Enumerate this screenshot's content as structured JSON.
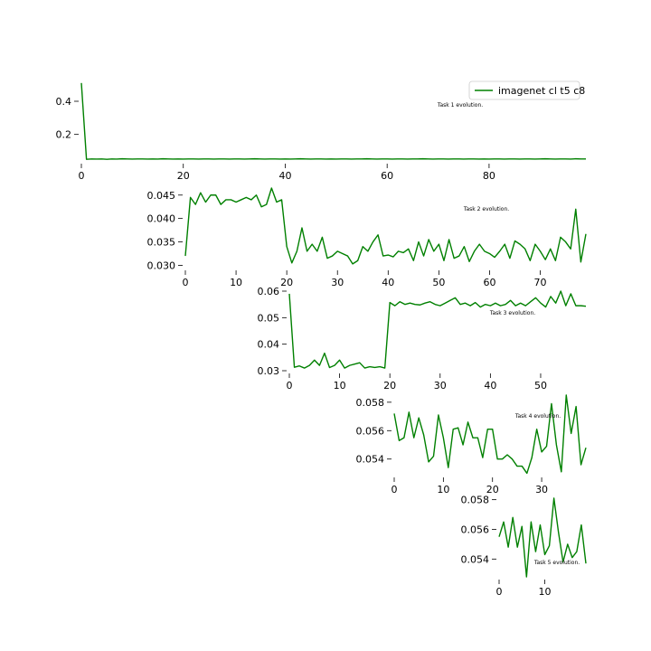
{
  "legend": {
    "label": "imagenet cl t5 c8",
    "color": "#008000"
  },
  "chart_data": [
    {
      "type": "line",
      "title": "Task 1 evolution.",
      "xlim": [
        0,
        99
      ],
      "ylim": [
        0.04,
        0.52
      ],
      "xticks": [
        0,
        20,
        40,
        60,
        80
      ],
      "yticks": [
        0.2,
        0.4
      ],
      "ytick_labels": [
        "0.2",
        "0.4"
      ],
      "series": [
        {
          "name": "imagenet cl t5 c8",
          "values": [
            0.51,
            0.05,
            0.052,
            0.051,
            0.052,
            0.05,
            0.052,
            0.051,
            0.053,
            0.052,
            0.051,
            0.052,
            0.052,
            0.051,
            0.052,
            0.051,
            0.053,
            0.052,
            0.051,
            0.052,
            0.051,
            0.052,
            0.052,
            0.051,
            0.052,
            0.052,
            0.051,
            0.052,
            0.052,
            0.051,
            0.052,
            0.052,
            0.051,
            0.052,
            0.053,
            0.052,
            0.051,
            0.052,
            0.052,
            0.051,
            0.052,
            0.051,
            0.052,
            0.053,
            0.052,
            0.051,
            0.052,
            0.052,
            0.051,
            0.052,
            0.051,
            0.052,
            0.052,
            0.051,
            0.052,
            0.052,
            0.053,
            0.052,
            0.051,
            0.052,
            0.052,
            0.051,
            0.052,
            0.052,
            0.051,
            0.052,
            0.052,
            0.053,
            0.052,
            0.051,
            0.052,
            0.052,
            0.051,
            0.052,
            0.052,
            0.051,
            0.052,
            0.052,
            0.051,
            0.052,
            0.051,
            0.052,
            0.052,
            0.051,
            0.052,
            0.052,
            0.051,
            0.052,
            0.052,
            0.051,
            0.052,
            0.053,
            0.052,
            0.051,
            0.052,
            0.052,
            0.051,
            0.053,
            0.052,
            0.052
          ]
        }
      ]
    },
    {
      "type": "line",
      "title": "Task 2 evolution.",
      "xlim": [
        0,
        79
      ],
      "ylim": [
        0.0295,
        0.0465
      ],
      "xticks": [
        0,
        10,
        20,
        30,
        40,
        50,
        60,
        70
      ],
      "yticks": [
        0.03,
        0.035,
        0.04,
        0.045
      ],
      "ytick_labels": [
        "0.030",
        "0.035",
        "0.040",
        "0.045"
      ],
      "series": [
        {
          "name": "imagenet cl t5 c8",
          "values": [
            0.032,
            0.0445,
            0.043,
            0.0455,
            0.0435,
            0.045,
            0.045,
            0.043,
            0.044,
            0.044,
            0.0435,
            0.044,
            0.0445,
            0.044,
            0.045,
            0.0425,
            0.043,
            0.0465,
            0.0435,
            0.044,
            0.034,
            0.0305,
            0.033,
            0.038,
            0.033,
            0.0345,
            0.033,
            0.036,
            0.0315,
            0.032,
            0.033,
            0.0325,
            0.032,
            0.0303,
            0.031,
            0.034,
            0.033,
            0.035,
            0.0365,
            0.032,
            0.0322,
            0.0318,
            0.033,
            0.0327,
            0.0335,
            0.031,
            0.035,
            0.032,
            0.0355,
            0.033,
            0.0345,
            0.031,
            0.0355,
            0.0315,
            0.032,
            0.034,
            0.0308,
            0.033,
            0.0345,
            0.033,
            0.0325,
            0.0317,
            0.033,
            0.0345,
            0.0315,
            0.0352,
            0.0345,
            0.0335,
            0.031,
            0.0345,
            0.033,
            0.0312,
            0.0335,
            0.031,
            0.036,
            0.035,
            0.0335,
            0.042,
            0.0307,
            0.0367
          ]
        }
      ]
    },
    {
      "type": "line",
      "title": "Task 3 evolution.",
      "xlim": [
        0,
        59
      ],
      "ylim": [
        0.03,
        0.06
      ],
      "xticks": [
        0,
        10,
        20,
        30,
        40,
        50
      ],
      "yticks": [
        0.03,
        0.04,
        0.05,
        0.06
      ],
      "ytick_labels": [
        "0.03",
        "0.04",
        "0.05",
        "0.06"
      ],
      "series": [
        {
          "name": "imagenet cl t5 c8",
          "values": [
            0.059,
            0.0313,
            0.0318,
            0.031,
            0.032,
            0.034,
            0.032,
            0.0366,
            0.0312,
            0.032,
            0.034,
            0.031,
            0.032,
            0.0325,
            0.033,
            0.031,
            0.0315,
            0.0312,
            0.0315,
            0.031,
            0.0557,
            0.0545,
            0.056,
            0.055,
            0.0555,
            0.055,
            0.0548,
            0.0555,
            0.056,
            0.055,
            0.0545,
            0.0555,
            0.0565,
            0.0575,
            0.055,
            0.0555,
            0.0545,
            0.0557,
            0.054,
            0.055,
            0.0545,
            0.0555,
            0.0545,
            0.055,
            0.0565,
            0.0545,
            0.0555,
            0.0545,
            0.056,
            0.0575,
            0.0555,
            0.054,
            0.058,
            0.0555,
            0.06,
            0.0545,
            0.059,
            0.0545,
            0.0545,
            0.0543
          ]
        }
      ]
    },
    {
      "type": "line",
      "title": "Task 4 evolution.",
      "xlim": [
        0,
        39
      ],
      "ylim": [
        0.0529,
        0.0585
      ],
      "xticks": [
        0,
        10,
        20,
        30
      ],
      "yticks": [
        0.054,
        0.056,
        0.058
      ],
      "ytick_labels": [
        "0.054",
        "0.056",
        "0.058"
      ],
      "series": [
        {
          "name": "imagenet cl t5 c8",
          "values": [
            0.0572,
            0.0553,
            0.0555,
            0.0573,
            0.0555,
            0.0569,
            0.0557,
            0.0538,
            0.0542,
            0.0571,
            0.0555,
            0.0534,
            0.0561,
            0.0562,
            0.055,
            0.0566,
            0.0555,
            0.0555,
            0.0541,
            0.0561,
            0.0561,
            0.054,
            0.054,
            0.0543,
            0.054,
            0.0535,
            0.0535,
            0.053,
            0.0541,
            0.0561,
            0.0545,
            0.0549,
            0.0579,
            0.055,
            0.0531,
            0.0585,
            0.0558,
            0.0577,
            0.0536,
            0.0548
          ]
        }
      ]
    },
    {
      "type": "line",
      "title": "Task 5 evolution.",
      "xlim": [
        0,
        19
      ],
      "ylim": [
        0.0528,
        0.0581
      ],
      "xticks": [
        0,
        10
      ],
      "yticks": [
        0.054,
        0.056,
        0.058
      ],
      "ytick_labels": [
        "0.054",
        "0.056",
        "0.058"
      ],
      "series": [
        {
          "name": "imagenet cl t5 c8",
          "values": [
            0.0555,
            0.0565,
            0.0548,
            0.0568,
            0.0548,
            0.0562,
            0.0528,
            0.0565,
            0.0545,
            0.0563,
            0.0543,
            0.0549,
            0.0581,
            0.0558,
            0.0538,
            0.055,
            0.0541,
            0.0545,
            0.0563,
            0.0537
          ]
        }
      ]
    }
  ]
}
